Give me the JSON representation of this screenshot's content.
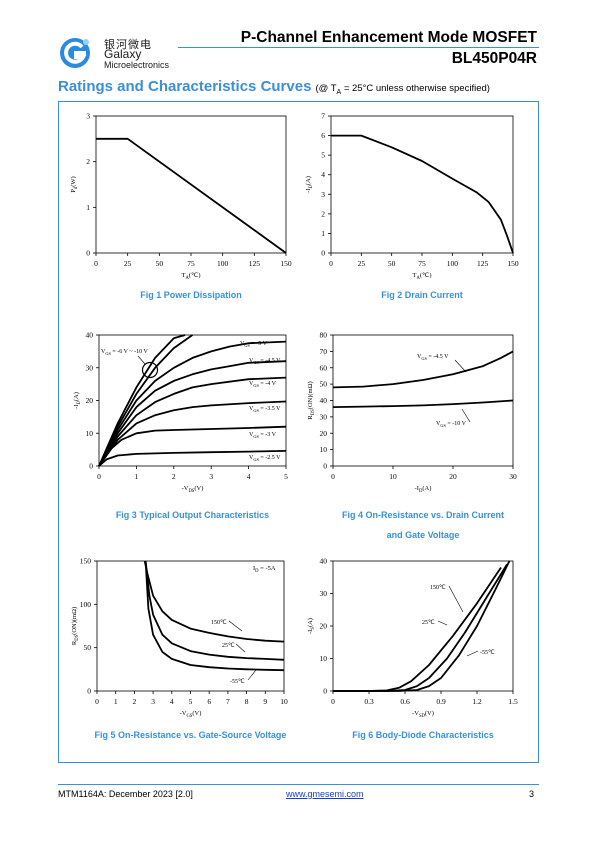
{
  "header": {
    "logo_cn": "银河微电",
    "logo_en_1": "Galaxy",
    "logo_en_2": "Microelectronics",
    "title": "P-Channel Enhancement Mode MOSFET",
    "part": "BL450P04R"
  },
  "section": {
    "title": "Ratings and Characteristics Curves",
    "note_prefix": "(@ T",
    "note_sub": "A",
    "note_suffix": " = 25°C unless otherwise specified)"
  },
  "footer": {
    "doc": "MTM1164A: December 2023 [2.0]",
    "url": "www.gmesemi.com",
    "page": "3"
  },
  "colors": {
    "accent": "#3a8fd8",
    "rule": "#3a8fd8"
  },
  "chart_data": [
    {
      "type": "line",
      "caption": "Fig 1    Power Dissipation",
      "xlabel": "T_A(℃)",
      "ylabel": "P_d(W)",
      "xlim": [
        0,
        150
      ],
      "ylim": [
        0,
        3
      ],
      "xticks": [
        "0",
        "25",
        "50",
        "75",
        "100",
        "125",
        "150"
      ],
      "yticks": [
        "0",
        "1",
        "2",
        "3"
      ],
      "series": [
        {
          "x": [
            0,
            25,
            150
          ],
          "y": [
            2.5,
            2.5,
            0
          ]
        }
      ]
    },
    {
      "type": "line",
      "caption": "Fig 2    Drain Current",
      "xlabel": "T_A(℃)",
      "ylabel": "-I_D(A)",
      "xlim": [
        0,
        150
      ],
      "ylim": [
        0,
        7
      ],
      "xticks": [
        "0",
        "25",
        "50",
        "75",
        "100",
        "125",
        "150"
      ],
      "yticks": [
        "0",
        "1",
        "2",
        "3",
        "4",
        "5",
        "6",
        "7"
      ],
      "series": [
        {
          "x": [
            0,
            25,
            50,
            75,
            100,
            110,
            120,
            130,
            140,
            145,
            150
          ],
          "y": [
            6,
            6,
            5.4,
            4.7,
            3.8,
            3.45,
            3.1,
            2.6,
            1.7,
            0.9,
            0
          ]
        }
      ]
    },
    {
      "type": "line",
      "caption": "Fig 3    Typical Output Characteristics",
      "xlabel": "-V_DS(V)",
      "ylabel": "-I_D(A)",
      "xlim": [
        0,
        5
      ],
      "ylim": [
        0,
        40
      ],
      "xticks": [
        "0",
        "1",
        "2",
        "3",
        "4",
        "5"
      ],
      "yticks": [
        "0",
        "10",
        "20",
        "30",
        "40"
      ],
      "annotation": "V_GS = -6 V ~ -10 V",
      "series": [
        {
          "name": "V_GS = -10 V",
          "x": [
            0,
            0.5,
            1,
            1.5,
            2,
            2.3
          ],
          "y": [
            0,
            13,
            24,
            33,
            39,
            40
          ]
        },
        {
          "name": "V_GS = -6 V",
          "x": [
            0,
            0.5,
            1,
            1.5,
            2,
            2.5
          ],
          "y": [
            0,
            12,
            22,
            30,
            36,
            40
          ]
        },
        {
          "name": "V_GS = -5 V",
          "x": [
            0,
            0.5,
            1,
            1.5,
            2,
            2.5,
            3,
            3.5,
            4,
            5
          ],
          "y": [
            0,
            11,
            20,
            26,
            30,
            33,
            35,
            36.5,
            37.5,
            38
          ]
        },
        {
          "name": "V_GS = -4.5 V",
          "x": [
            0,
            0.5,
            1,
            1.5,
            2,
            2.5,
            3,
            3.5,
            4,
            5
          ],
          "y": [
            0,
            10,
            18,
            23,
            26,
            28,
            29.5,
            30.5,
            31.5,
            32
          ]
        },
        {
          "name": "V_GS = -4 V",
          "x": [
            0,
            0.5,
            1,
            1.5,
            2,
            2.5,
            3,
            4,
            5
          ],
          "y": [
            0,
            9,
            15.5,
            19.5,
            22,
            24,
            25,
            26.5,
            27
          ]
        },
        {
          "name": "V_GS = -3.5 V",
          "x": [
            0,
            0.5,
            1,
            1.5,
            2,
            2.5,
            3,
            4,
            5
          ],
          "y": [
            0,
            8,
            13,
            15.5,
            17,
            18,
            18.5,
            19.2,
            19.7
          ]
        },
        {
          "name": "V_GS = -3 V",
          "x": [
            0,
            0.3,
            0.6,
            1,
            1.5,
            2,
            3,
            4,
            5
          ],
          "y": [
            0,
            5,
            8,
            10,
            10.8,
            11,
            11.3,
            11.6,
            12
          ]
        },
        {
          "name": "V_GS = -2.5 V",
          "x": [
            0,
            0.2,
            0.5,
            1,
            2,
            3,
            4,
            5
          ],
          "y": [
            0,
            2,
            3.2,
            3.7,
            4,
            4.2,
            4.4,
            4.6
          ]
        }
      ]
    },
    {
      "type": "line",
      "caption": "Fig 4    On-Resistance vs. Drain Current",
      "caption2": "and Gate Voltage",
      "xlabel": "-I_D(A)",
      "ylabel": "R_DS(ON)(mΩ)",
      "xlim": [
        0,
        30
      ],
      "ylim": [
        0,
        80
      ],
      "xticks": [
        "0",
        "10",
        "20",
        "30"
      ],
      "yticks": [
        "0",
        "10",
        "20",
        "30",
        "40",
        "50",
        "60",
        "70",
        "80"
      ],
      "series": [
        {
          "name": "V_GS = -4.5 V",
          "x": [
            0,
            5,
            10,
            15,
            20,
            25,
            28,
            30
          ],
          "y": [
            48,
            48.5,
            50,
            52.5,
            56,
            61,
            66,
            70
          ]
        },
        {
          "name": "V_GS = -10 V",
          "x": [
            0,
            5,
            10,
            15,
            20,
            25,
            30
          ],
          "y": [
            36,
            36.3,
            36.6,
            37,
            37.8,
            38.8,
            40
          ]
        }
      ]
    },
    {
      "type": "line",
      "caption": "Fig 5    On-Resistance vs. Gate-Source Voltage",
      "xlabel": "-V_GS(V)",
      "ylabel": "R_DS(ON)(mΩ)",
      "xlim": [
        0,
        10
      ],
      "ylim": [
        0,
        150
      ],
      "xticks": [
        "0",
        "1",
        "2",
        "3",
        "4",
        "5",
        "6",
        "7",
        "8",
        "9",
        "10"
      ],
      "yticks": [
        "0",
        "50",
        "100",
        "150"
      ],
      "annotation": "I_D = -5A",
      "series": [
        {
          "name": "150℃",
          "x": [
            2.55,
            2.7,
            3,
            3.5,
            4,
            5,
            6,
            7,
            8,
            9,
            10
          ],
          "y": [
            150,
            135,
            110,
            92,
            82,
            72,
            67,
            63,
            60,
            58,
            57
          ]
        },
        {
          "name": "25℃",
          "x": [
            2.6,
            2.8,
            3,
            3.5,
            4,
            5,
            6,
            7,
            8,
            9,
            10
          ],
          "y": [
            150,
            110,
            88,
            65,
            55,
            46,
            42,
            39.5,
            38,
            37,
            36
          ]
        },
        {
          "name": "-55℃",
          "x": [
            2.6,
            2.75,
            3,
            3.5,
            4,
            5,
            6,
            7,
            8,
            9,
            10
          ],
          "y": [
            150,
            95,
            65,
            45,
            37,
            30,
            27.5,
            26,
            25,
            24.5,
            24
          ]
        }
      ]
    },
    {
      "type": "line",
      "caption": "Fig 6    Body-Diode Characteristics",
      "xlabel": "-V_SD(V)",
      "ylabel": "-I_S(A)",
      "xlim": [
        0,
        1.5
      ],
      "ylim": [
        0,
        40
      ],
      "xticks": [
        "0",
        "0.3",
        "0.6",
        "0.9",
        "1.2",
        "1.5"
      ],
      "yticks": [
        "0",
        "10",
        "20",
        "30",
        "40"
      ],
      "series": [
        {
          "name": "150℃",
          "x": [
            0,
            0.3,
            0.45,
            0.55,
            0.65,
            0.8,
            1.0,
            1.2,
            1.4
          ],
          "y": [
            0,
            0,
            0.2,
            1,
            3,
            8,
            17,
            27,
            38
          ]
        },
        {
          "name": "25℃",
          "x": [
            0,
            0.45,
            0.6,
            0.7,
            0.8,
            0.95,
            1.1,
            1.3,
            1.45
          ],
          "y": [
            0,
            0,
            0.3,
            1.5,
            4,
            10,
            18,
            30,
            39
          ]
        },
        {
          "name": "-55℃",
          "x": [
            0,
            0.55,
            0.7,
            0.8,
            0.9,
            1.05,
            1.2,
            1.35,
            1.47
          ],
          "y": [
            0,
            0,
            0.3,
            1.5,
            4,
            11,
            20,
            31,
            40
          ]
        }
      ]
    }
  ]
}
